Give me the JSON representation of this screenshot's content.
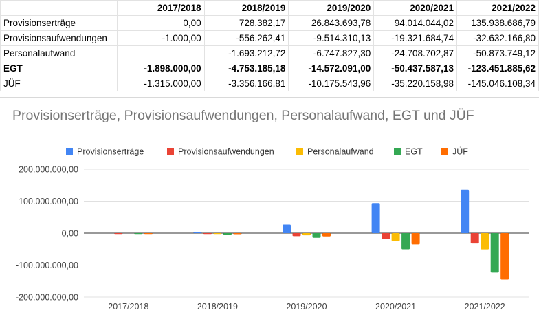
{
  "table": {
    "headers": [
      "",
      "2017/2018",
      "2018/2019",
      "2019/2020",
      "2020/2021",
      "2021/2022"
    ],
    "rows": [
      {
        "label": "Provisionserträge",
        "bold": false,
        "cells": [
          "0,00",
          "728.382,17",
          "26.843.693,78",
          "94.014.044,02",
          "135.938.686,79"
        ]
      },
      {
        "label": "Provisionsaufwendungen",
        "bold": false,
        "cells": [
          "-1.000,00",
          "-556.262,41",
          "-9.514.310,13",
          "-19.321.684,74",
          "-32.632.166,80"
        ]
      },
      {
        "label": "Personalaufwand",
        "bold": false,
        "cells": [
          "",
          "-1.693.212,72",
          "-6.747.827,30",
          "-24.708.702,87",
          "-50.873.749,12"
        ]
      },
      {
        "label": "EGT",
        "bold": true,
        "cells": [
          "-1.898.000,00",
          "-4.753.185,18",
          "-14.572.091,00",
          "-50.437.587,13",
          "-123.451.885,62"
        ]
      },
      {
        "label": "JÜF",
        "bold": false,
        "cells": [
          "-1.315.000,00",
          "-3.356.166,81",
          "-10.175.543,96",
          "-35.220.158,98",
          "-145.046.108,34"
        ]
      }
    ]
  },
  "chart_data": {
    "type": "bar",
    "title": "Provisionserträge, Provisionsaufwendungen, Personalaufwand, EGT und JÜF",
    "categories": [
      "2017/2018",
      "2018/2019",
      "2019/2020",
      "2020/2021",
      "2021/2022"
    ],
    "series": [
      {
        "name": "Provisionserträge",
        "color": "#4285f4",
        "values": [
          0,
          728382.17,
          26843693.78,
          94014044.02,
          135938686.79
        ]
      },
      {
        "name": "Provisionsaufwendungen",
        "color": "#ea4335",
        "values": [
          -1000,
          -556262.41,
          -9514310.13,
          -19321684.74,
          -32632166.8
        ]
      },
      {
        "name": "Personalaufwand",
        "color": "#fbbc04",
        "values": [
          0,
          -1693212.72,
          -6747827.3,
          -24708702.87,
          -50873749.12
        ]
      },
      {
        "name": "EGT",
        "color": "#34a853",
        "values": [
          -1898000,
          -4753185.18,
          -14572091,
          -50437587.13,
          -123451885.62
        ]
      },
      {
        "name": "JÜF",
        "color": "#ff6d01",
        "values": [
          -1315000,
          -3356166.81,
          -10175543.96,
          -35220158.98,
          -145046108.34
        ]
      }
    ],
    "ylim": [
      -200000000,
      200000000
    ],
    "yticks": [
      200000000,
      100000000,
      0,
      -100000000,
      -200000000
    ],
    "ytick_labels": [
      "200.000.000,00",
      "100.000.000,00",
      "0,00",
      "-100.000.000,00",
      "-200.000.000,00"
    ],
    "legend_position": "top",
    "grid": true
  }
}
